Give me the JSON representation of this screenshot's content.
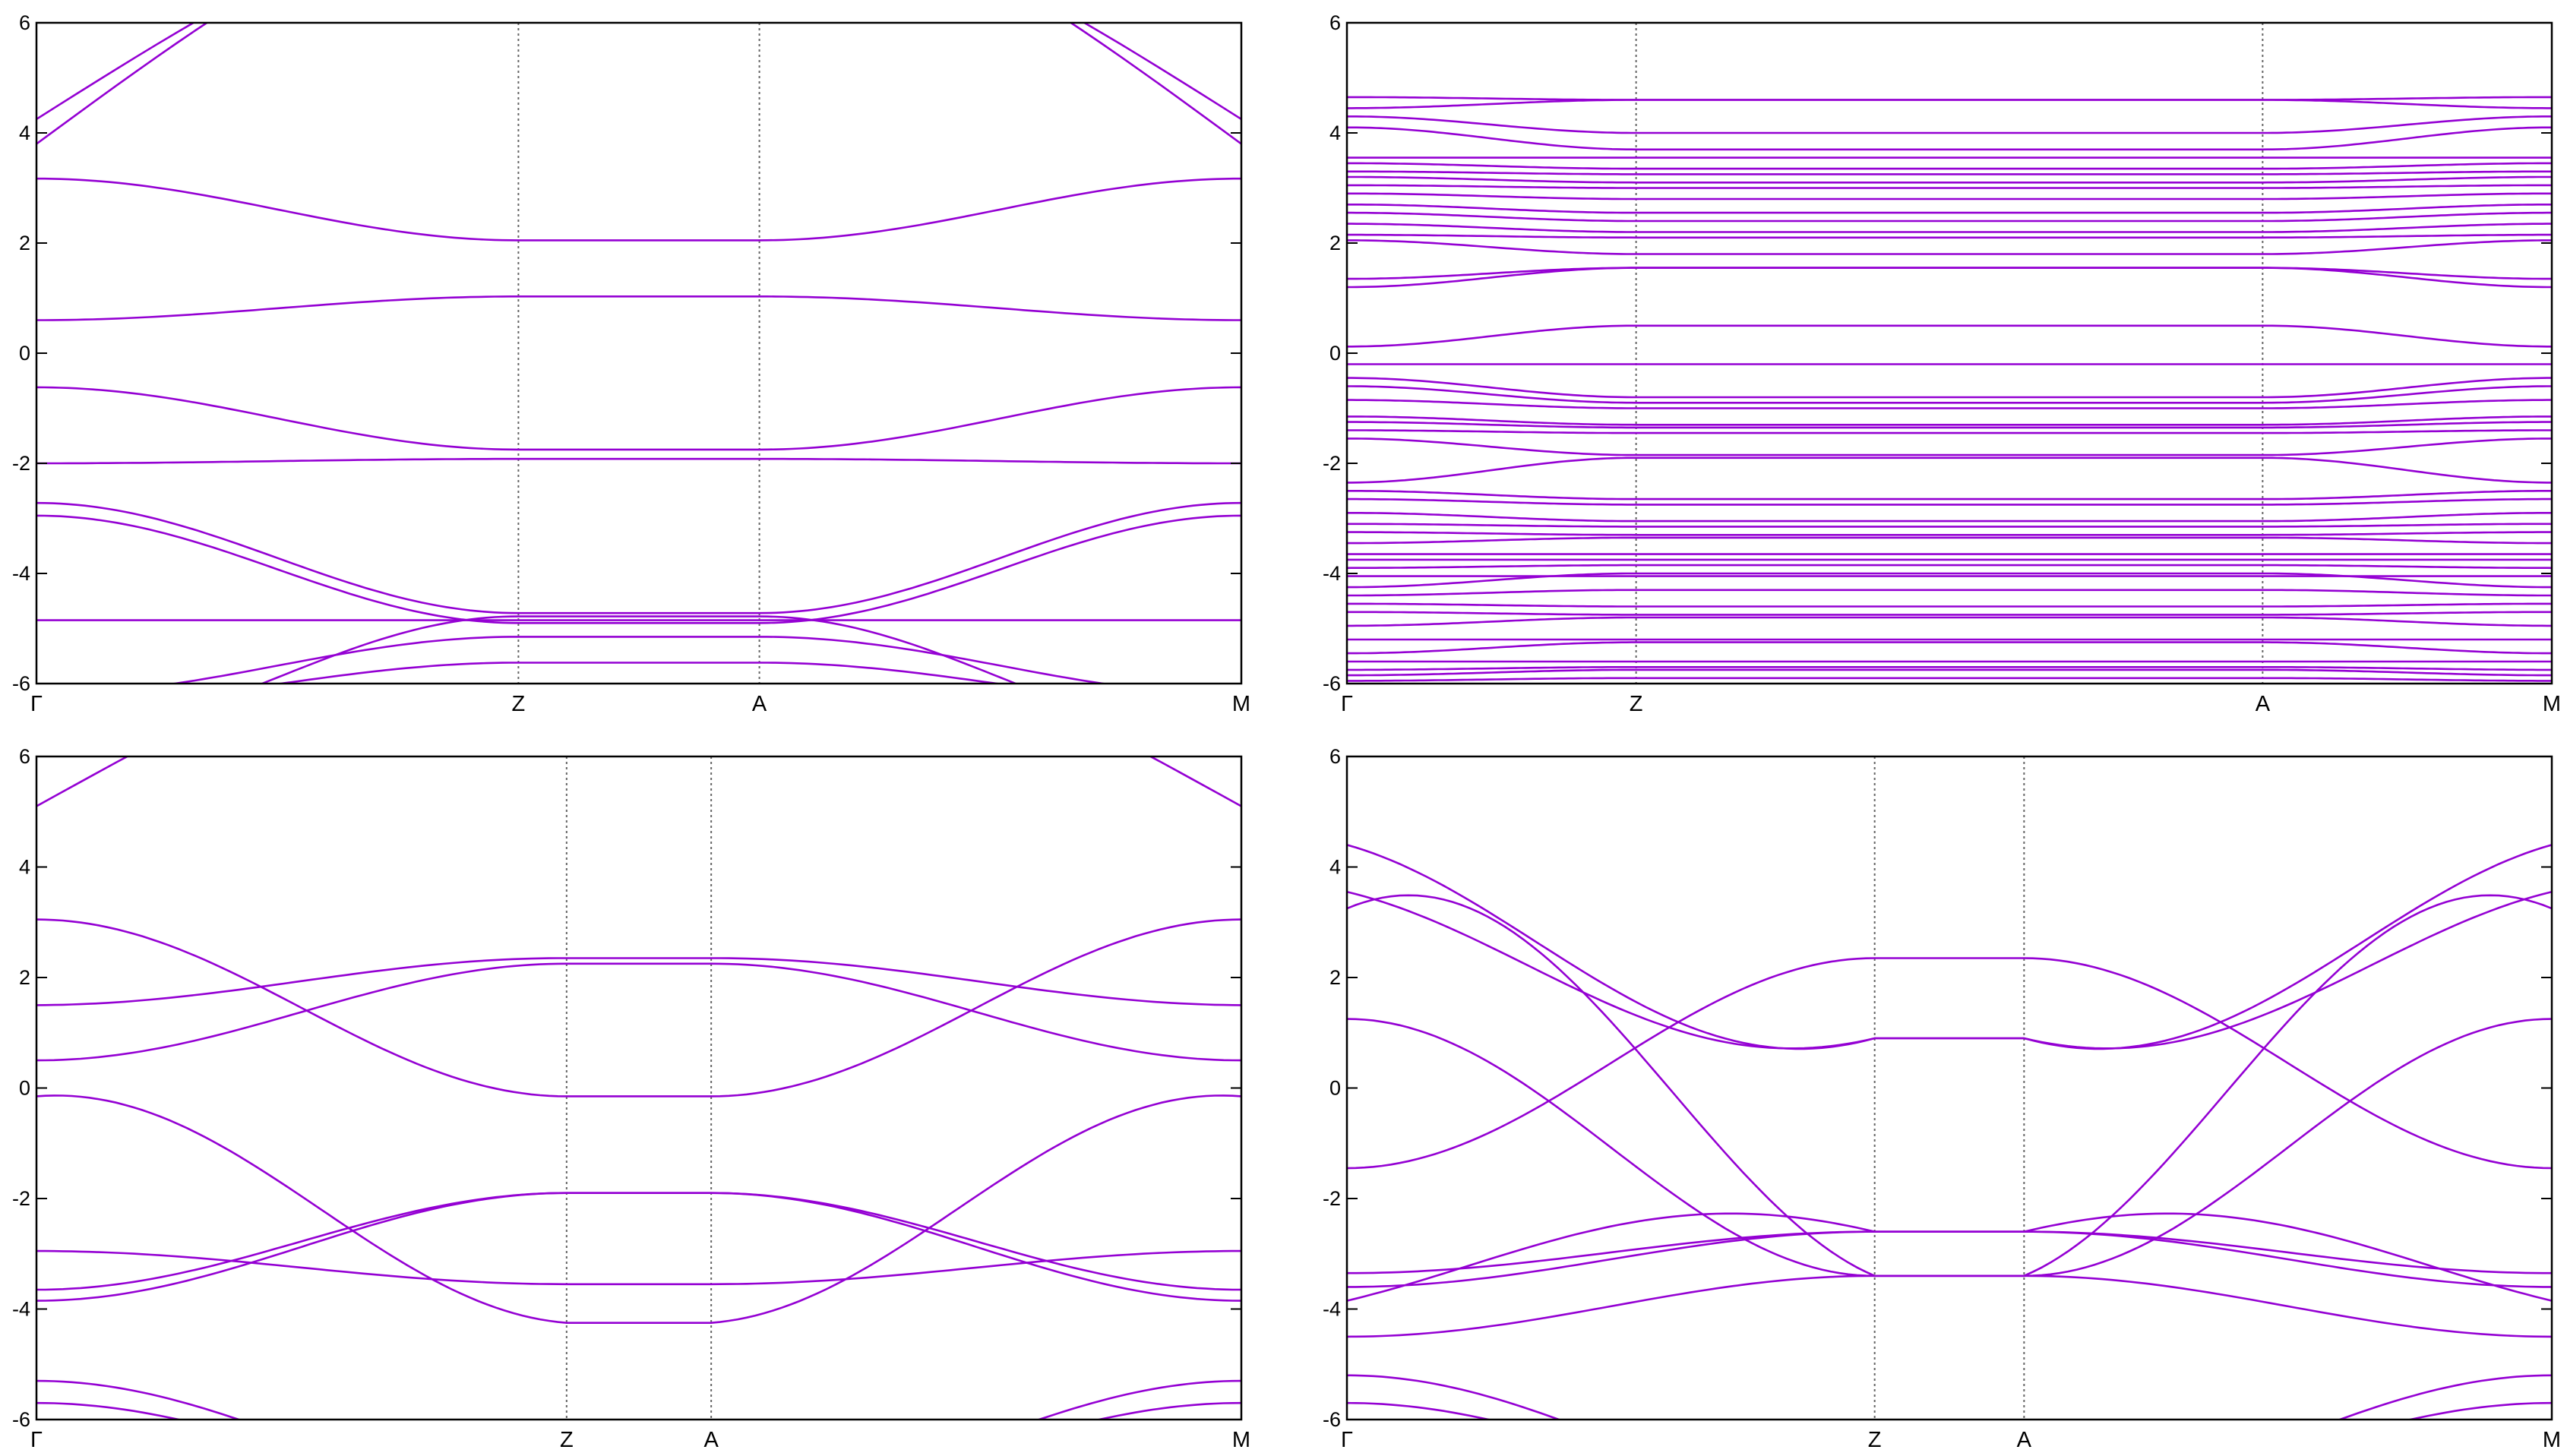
{
  "style": {
    "band_color": "#9400D3",
    "frame_color": "#000000",
    "kline_color": "#666666"
  },
  "chart_data": [
    {
      "type": "line",
      "title": "",
      "xlabel": "",
      "ylabel": "",
      "ylim": [
        -6,
        6
      ],
      "yticks": [
        "6",
        "4",
        "2",
        "0",
        "-2",
        "-4",
        "-6"
      ],
      "kpoints": [
        {
          "label": "Γ",
          "k": 0
        },
        {
          "label": "Z",
          "k": 0.4
        },
        {
          "label": "A",
          "k": 0.6
        },
        {
          "label": "M",
          "k": 1
        }
      ],
      "series": [
        {
          "bands": [
            {
              "y": [
                4.25,
                7.0,
                7.0,
                7.0,
                4.25
              ],
              "shape": "ohi"
            },
            {
              "y": [
                3.8,
                7.0,
                7.0,
                7.0,
                3.8
              ],
              "shape": "ohi"
            },
            {
              "y": [
                3.17,
                2.05,
                2.05,
                3.17
              ]
            },
            {
              "y": [
                0.6,
                1.03,
                1.03,
                0.6
              ]
            },
            {
              "y": [
                -0.62,
                -1.75,
                -1.75,
                -0.62
              ]
            },
            {
              "y": [
                -2.0,
                -1.92,
                -1.92,
                -2.0
              ],
              "shape": "dip",
              "extra": -0.1
            },
            {
              "y": [
                -2.72,
                -4.72,
                -4.72,
                -2.72
              ]
            },
            {
              "y": [
                -2.95,
                -4.9,
                -4.9,
                -2.95
              ]
            },
            {
              "y": [
                -4.85,
                -4.85,
                -4.85,
                -4.85
              ]
            },
            {
              "y": [
                -6.2,
                -5.15,
                -5.15,
                -6.2
              ]
            },
            {
              "y": [
                -6.4,
                -5.62,
                -5.62,
                -6.4
              ]
            },
            {
              "y": [
                -7.0,
                -4.78,
                -4.78,
                -7.0
              ]
            }
          ]
        }
      ]
    },
    {
      "type": "line",
      "title": "",
      "xlabel": "",
      "ylabel": "",
      "ylim": [
        -6,
        6
      ],
      "yticks": [
        "6",
        "4",
        "2",
        "0",
        "-2",
        "-4",
        "-6"
      ],
      "kpoints": [
        {
          "label": "Γ",
          "k": 0
        },
        {
          "label": "Z",
          "k": 0.24
        },
        {
          "label": "A",
          "k": 0.76
        },
        {
          "label": "M",
          "k": 1
        }
      ],
      "series": [
        {
          "bands": [
            {
              "y": [
                4.65,
                4.6,
                4.6,
                4.65
              ]
            },
            {
              "y": [
                4.45,
                4.6,
                4.6,
                4.45
              ]
            },
            {
              "y": [
                4.3,
                4.0,
                4.0,
                4.3
              ]
            },
            {
              "y": [
                4.1,
                3.7,
                3.7,
                4.1
              ]
            },
            {
              "y": [
                3.55,
                3.55,
                3.55,
                3.55
              ]
            },
            {
              "y": [
                3.45,
                3.35,
                3.35,
                3.45
              ]
            },
            {
              "y": [
                3.3,
                3.25,
                3.25,
                3.3
              ]
            },
            {
              "y": [
                3.2,
                3.1,
                3.1,
                3.2
              ]
            },
            {
              "y": [
                3.05,
                3.0,
                3.0,
                3.05
              ]
            },
            {
              "y": [
                2.9,
                2.8,
                2.8,
                2.9
              ]
            },
            {
              "y": [
                2.7,
                2.55,
                2.55,
                2.7
              ]
            },
            {
              "y": [
                2.55,
                2.4,
                2.4,
                2.55
              ]
            },
            {
              "y": [
                2.35,
                2.2,
                2.2,
                2.35
              ]
            },
            {
              "y": [
                2.15,
                2.1,
                2.1,
                2.15
              ]
            },
            {
              "y": [
                2.05,
                1.8,
                1.8,
                2.05
              ]
            },
            {
              "y": [
                1.35,
                1.55,
                1.55,
                1.35
              ]
            },
            {
              "y": [
                1.2,
                1.55,
                1.55,
                1.2
              ]
            },
            {
              "y": [
                0.12,
                0.5,
                0.5,
                0.12
              ]
            },
            {
              "y": [
                -0.2,
                -0.2,
                -0.2,
                -0.2
              ]
            },
            {
              "y": [
                -0.45,
                -0.8,
                -0.8,
                -0.45
              ]
            },
            {
              "y": [
                -0.6,
                -0.9,
                -0.9,
                -0.6
              ]
            },
            {
              "y": [
                -0.85,
                -1.0,
                -1.0,
                -0.85
              ]
            },
            {
              "y": [
                -1.15,
                -1.3,
                -1.3,
                -1.15
              ]
            },
            {
              "y": [
                -1.25,
                -1.35,
                -1.35,
                -1.25
              ]
            },
            {
              "y": [
                -1.4,
                -1.45,
                -1.45,
                -1.4
              ]
            },
            {
              "y": [
                -1.55,
                -1.85,
                -1.85,
                -1.55
              ]
            },
            {
              "y": [
                -2.35,
                -1.9,
                -1.9,
                -2.35
              ]
            },
            {
              "y": [
                -2.5,
                -2.65,
                -2.65,
                -2.5
              ]
            },
            {
              "y": [
                -2.65,
                -2.75,
                -2.75,
                -2.65
              ]
            },
            {
              "y": [
                -2.9,
                -3.05,
                -3.05,
                -2.9
              ]
            },
            {
              "y": [
                -3.1,
                -3.15,
                -3.15,
                -3.1
              ]
            },
            {
              "y": [
                -3.25,
                -3.3,
                -3.3,
                -3.25
              ]
            },
            {
              "y": [
                -3.45,
                -3.35,
                -3.35,
                -3.45
              ]
            },
            {
              "y": [
                -3.65,
                -3.65,
                -3.65,
                -3.65
              ]
            },
            {
              "y": [
                -3.75,
                -3.75,
                -3.75,
                -3.75
              ]
            },
            {
              "y": [
                -3.9,
                -3.85,
                -3.85,
                -3.9
              ]
            },
            {
              "y": [
                -4.05,
                -4.05,
                -4.05,
                -4.05
              ]
            },
            {
              "y": [
                -4.25,
                -4.0,
                -4.0,
                -4.25
              ]
            },
            {
              "y": [
                -4.4,
                -4.3,
                -4.3,
                -4.4
              ]
            },
            {
              "y": [
                -4.55,
                -4.6,
                -4.6,
                -4.55
              ]
            },
            {
              "y": [
                -4.7,
                -4.75,
                -4.75,
                -4.7
              ]
            },
            {
              "y": [
                -4.95,
                -4.8,
                -4.8,
                -4.95
              ]
            },
            {
              "y": [
                -5.2,
                -5.2,
                -5.2,
                -5.2
              ]
            },
            {
              "y": [
                -5.45,
                -5.25,
                -5.25,
                -5.45
              ]
            },
            {
              "y": [
                -5.6,
                -5.6,
                -5.6,
                -5.6
              ]
            },
            {
              "y": [
                -5.75,
                -5.7,
                -5.7,
                -5.75
              ]
            },
            {
              "y": [
                -5.85,
                -5.75,
                -5.75,
                -5.85
              ]
            },
            {
              "y": [
                -5.95,
                -5.9,
                -5.9,
                -5.95
              ]
            }
          ]
        }
      ]
    },
    {
      "type": "line",
      "title": "",
      "xlabel": "",
      "ylabel": "",
      "ylim": [
        -6,
        6
      ],
      "yticks": [
        "6",
        "4",
        "2",
        "0",
        "-2",
        "-4",
        "-6"
      ],
      "kpoints": [
        {
          "label": "Γ",
          "k": 0
        },
        {
          "label": "Z",
          "k": 0.44
        },
        {
          "label": "A",
          "k": 0.56
        },
        {
          "label": "M",
          "k": 1
        }
      ],
      "series": [
        {
          "bands": [
            {
              "y": [
                5.1,
                7.5,
                7.5,
                7.5,
                5.1
              ],
              "shape": "ohi"
            },
            {
              "y": [
                3.05,
                -0.15,
                -0.15,
                3.05
              ]
            },
            {
              "y": [
                1.5,
                2.35,
                2.35,
                1.5
              ],
              "shape": "max",
              "extra": 0.02
            },
            {
              "y": [
                0.5,
                2.25,
                2.25,
                0.5
              ]
            },
            {
              "y": [
                -0.15,
                -4.25,
                -4.25,
                -0.15
              ],
              "shape": "bump",
              "extra": 0.3
            },
            {
              "y": [
                -2.95,
                -3.55,
                -3.55,
                -2.95
              ],
              "shape": "dip",
              "extra": -2.6
            },
            {
              "y": [
                -3.65,
                -1.9,
                -1.9,
                -3.65
              ]
            },
            {
              "y": [
                -3.85,
                -1.9,
                -1.9,
                -3.85
              ]
            },
            {
              "y": [
                -5.3,
                -7.5,
                -7.5,
                -5.3
              ]
            },
            {
              "y": [
                -5.7,
                -7.5,
                -7.5,
                -5.7
              ]
            }
          ]
        }
      ]
    },
    {
      "type": "line",
      "title": "",
      "xlabel": "",
      "ylabel": "",
      "ylim": [
        -6,
        6
      ],
      "yticks": [
        "6",
        "4",
        "2",
        "0",
        "-2",
        "-4",
        "-6"
      ],
      "kpoints": [
        {
          "label": "Γ",
          "k": 0
        },
        {
          "label": "Z",
          "k": 0.438
        },
        {
          "label": "A",
          "k": 0.562
        },
        {
          "label": "M",
          "k": 1
        }
      ],
      "series": [
        {
          "bands": [
            {
              "y": [
                4.4,
                0.9,
                0.9,
                4.4
              ],
              "shape": "dip",
              "extra": -0.5
            },
            {
              "y": [
                3.55,
                0.9,
                0.9,
                3.55
              ],
              "shape": "dip",
              "extra": -0.3
            },
            {
              "y": [
                3.25,
                -3.4,
                -3.4,
                3.25
              ],
              "shape": "bump",
              "extra": 1.6
            },
            {
              "y": [
                1.25,
                -3.4,
                -3.4,
                1.25
              ]
            },
            {
              "y": [
                -1.45,
                2.35,
                2.35,
                -1.45
              ]
            },
            {
              "y": [
                -3.35,
                -2.6,
                -2.6,
                -3.35
              ],
              "shape": "dip",
              "extra": -2.5
            },
            {
              "y": [
                -3.6,
                -2.6,
                -2.6,
                -3.6
              ],
              "shape": "dip",
              "extra": -1.4
            },
            {
              "y": [
                -3.85,
                -2.6,
                -2.6,
                -3.85
              ],
              "shape": "bump",
              "extra": 0.9
            },
            {
              "y": [
                -4.5,
                -3.4,
                -3.4,
                -4.5
              ],
              "shape": "dip",
              "extra": -0.5
            },
            {
              "y": [
                -5.2,
                -7.5,
                -7.5,
                -5.2
              ]
            },
            {
              "y": [
                -5.7,
                -7.5,
                -7.5,
                -5.7
              ]
            }
          ]
        }
      ]
    }
  ]
}
